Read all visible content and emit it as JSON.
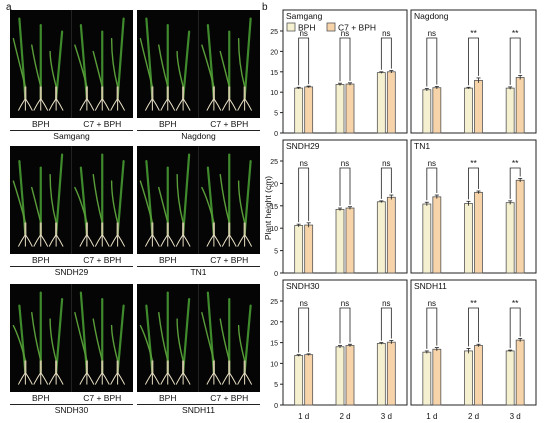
{
  "panel_a": {
    "letter": "a",
    "rows": [
      {
        "cells": [
          {
            "left_label": "BPH",
            "right_label": "C7 + BPH",
            "name": "Samgang"
          },
          {
            "left_label": "BPH",
            "right_label": "C7 + BPH",
            "name": "Nagdong"
          }
        ]
      },
      {
        "cells": [
          {
            "left_label": "BPH",
            "right_label": "C7 + BPH",
            "name": "SNDH29"
          },
          {
            "left_label": "BPH",
            "right_label": "C7 + BPH",
            "name": "TN1"
          }
        ]
      },
      {
        "cells": [
          {
            "left_label": "BPH",
            "right_label": "C7 + BPH",
            "name": "SNDH30"
          },
          {
            "left_label": "BPH",
            "right_label": "C7 + BPH",
            "name": "SNDH11"
          }
        ]
      }
    ]
  },
  "panel_b": {
    "letter": "b",
    "ylabel": "Plant height (cm)",
    "legend": [
      "BPH",
      "C7 + BPH"
    ],
    "colors": {
      "bph": "#f5f0cf",
      "c7": "#f6d3a8",
      "edge": "#555555"
    }
  },
  "chart_data": [
    {
      "type": "bar",
      "title": "Samgang",
      "categories": [
        "1 d",
        "2 d",
        "3 d"
      ],
      "series": [
        {
          "name": "BPH",
          "values": [
            11.0,
            11.9,
            14.8
          ]
        },
        {
          "name": "C7 + BPH",
          "values": [
            11.3,
            12.0,
            15.0
          ]
        }
      ],
      "errors": [
        [
          0.2,
          0.3,
          0.2
        ],
        [
          0.2,
          0.3,
          0.3
        ]
      ],
      "significance": [
        "ns",
        "ns",
        "ns"
      ],
      "ylim": [
        0,
        25
      ],
      "yticks": [
        0,
        5,
        10,
        15,
        20,
        25
      ],
      "show_legend": true
    },
    {
      "type": "bar",
      "title": "Nagdong",
      "categories": [
        "1 d",
        "2 d",
        "3 d"
      ],
      "series": [
        {
          "name": "BPH",
          "values": [
            10.6,
            11.0,
            11.0
          ]
        },
        {
          "name": "C7 + BPH",
          "values": [
            11.1,
            12.9,
            13.6
          ]
        }
      ],
      "errors": [
        [
          0.3,
          0.2,
          0.3
        ],
        [
          0.3,
          0.6,
          0.5
        ]
      ],
      "significance": [
        "ns",
        "**",
        "**"
      ],
      "ylim": [
        0,
        25
      ],
      "yticks": [
        0,
        5,
        10,
        15,
        20,
        25
      ]
    },
    {
      "type": "bar",
      "title": "SNDH29",
      "categories": [
        "1 d",
        "2 d",
        "3 d"
      ],
      "series": [
        {
          "name": "BPH",
          "values": [
            10.6,
            14.2,
            15.9
          ]
        },
        {
          "name": "C7 + BPH",
          "values": [
            10.7,
            14.5,
            16.9
          ]
        }
      ],
      "errors": [
        [
          0.3,
          0.3,
          0.2
        ],
        [
          0.5,
          0.3,
          0.5
        ]
      ],
      "significance": [
        "ns",
        "ns",
        "ns"
      ],
      "ylim": [
        0,
        25
      ],
      "yticks": [
        0,
        5,
        10,
        15,
        20,
        25
      ]
    },
    {
      "type": "bar",
      "title": "TN1",
      "categories": [
        "1 d",
        "2 d",
        "3 d"
      ],
      "series": [
        {
          "name": "BPH",
          "values": [
            15.4,
            15.5,
            15.7
          ]
        },
        {
          "name": "C7 + BPH",
          "values": [
            17.0,
            18.0,
            20.7
          ]
        }
      ],
      "errors": [
        [
          0.4,
          0.5,
          0.4
        ],
        [
          0.4,
          0.3,
          0.4
        ]
      ],
      "significance": [
        "ns",
        "**",
        "**"
      ],
      "ylim": [
        0,
        25
      ],
      "yticks": [
        0,
        5,
        10,
        15,
        20,
        25
      ]
    },
    {
      "type": "bar",
      "title": "SNDH30",
      "categories": [
        "1 d",
        "2 d",
        "3 d"
      ],
      "series": [
        {
          "name": "BPH",
          "values": [
            11.9,
            14.0,
            14.8
          ]
        },
        {
          "name": "C7 + BPH",
          "values": [
            12.1,
            14.3,
            15.1
          ]
        }
      ],
      "errors": [
        [
          0.2,
          0.3,
          0.2
        ],
        [
          0.2,
          0.3,
          0.4
        ]
      ],
      "significance": [
        "ns",
        "ns",
        "ns"
      ],
      "ylim": [
        0,
        25
      ],
      "yticks": [
        0,
        5,
        10,
        15,
        20,
        25
      ]
    },
    {
      "type": "bar",
      "title": "SNDH11",
      "categories": [
        "1 d",
        "2 d",
        "3 d"
      ],
      "series": [
        {
          "name": "BPH",
          "values": [
            12.7,
            13.0,
            13.0
          ]
        },
        {
          "name": "C7 + BPH",
          "values": [
            13.4,
            14.3,
            15.6
          ]
        }
      ],
      "errors": [
        [
          0.3,
          0.6,
          0.2
        ],
        [
          0.4,
          0.3,
          0.4
        ]
      ],
      "significance": [
        "ns",
        "**",
        "**"
      ],
      "ylim": [
        0,
        25
      ],
      "yticks": [
        0,
        5,
        10,
        15,
        20,
        25
      ]
    }
  ]
}
